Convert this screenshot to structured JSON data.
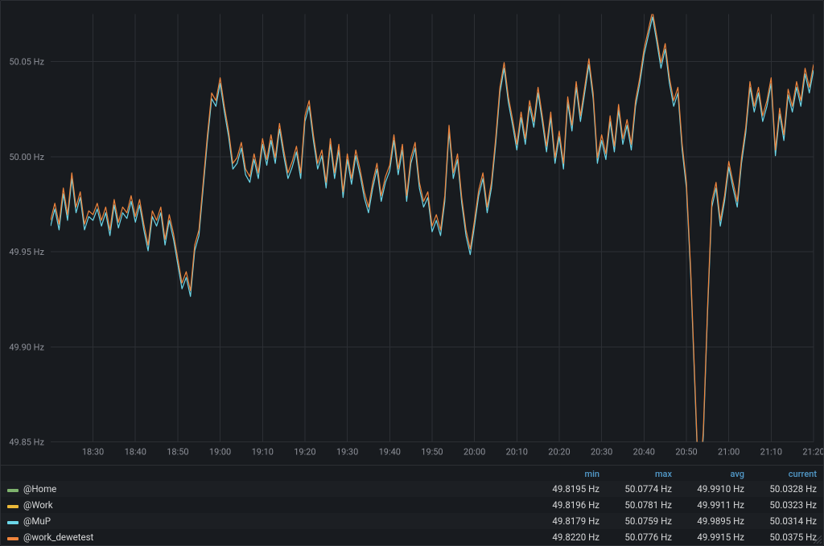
{
  "chart": {
    "type": "line",
    "background_color": "#181b1f",
    "grid_color": "#2c2f34",
    "axis_label_color": "#8e9199",
    "axis_fontsize": 11,
    "y": {
      "min": 49.85,
      "max": 50.075,
      "ticks": [
        49.85,
        49.9,
        49.95,
        50.0,
        50.05
      ],
      "tick_labels": [
        "49.85 Hz",
        "49.90 Hz",
        "49.95 Hz",
        "50.00 Hz",
        "50.05 Hz"
      ]
    },
    "x": {
      "min": 0,
      "max": 180,
      "ticks": [
        10,
        20,
        30,
        40,
        50,
        60,
        70,
        80,
        90,
        100,
        110,
        120,
        130,
        140,
        150,
        160,
        170,
        180
      ],
      "tick_labels": [
        "18:30",
        "18:40",
        "18:50",
        "19:00",
        "19:10",
        "19:20",
        "19:30",
        "19:40",
        "19:50",
        "20:00",
        "20:10",
        "20:20",
        "20:30",
        "20:40",
        "20:50",
        "21:00",
        "21:10",
        "21:20"
      ]
    },
    "line_width": 1.2,
    "series_plot": [
      {
        "name": "@MuP",
        "color": "#6bd6e8",
        "offset": -0.0015
      },
      {
        "name": "@work_dewetest",
        "color": "#ef843c",
        "offset": 0.0015
      }
    ],
    "base_line": [
      [
        0,
        49.965
      ],
      [
        1,
        49.974
      ],
      [
        2,
        49.963
      ],
      [
        3,
        49.982
      ],
      [
        4,
        49.968
      ],
      [
        5,
        49.99
      ],
      [
        6,
        49.972
      ],
      [
        7,
        49.98
      ],
      [
        8,
        49.963
      ],
      [
        9,
        49.97
      ],
      [
        10,
        49.968
      ],
      [
        11,
        49.974
      ],
      [
        12,
        49.965
      ],
      [
        13,
        49.972
      ],
      [
        14,
        49.96
      ],
      [
        15,
        49.976
      ],
      [
        16,
        49.964
      ],
      [
        17,
        49.972
      ],
      [
        18,
        49.969
      ],
      [
        19,
        49.978
      ],
      [
        20,
        49.967
      ],
      [
        21,
        49.976
      ],
      [
        22,
        49.963
      ],
      [
        23,
        49.952
      ],
      [
        24,
        49.97
      ],
      [
        25,
        49.965
      ],
      [
        26,
        49.972
      ],
      [
        27,
        49.955
      ],
      [
        28,
        49.968
      ],
      [
        29,
        49.958
      ],
      [
        30,
        49.945
      ],
      [
        31,
        49.932
      ],
      [
        32,
        49.938
      ],
      [
        33,
        49.928
      ],
      [
        34,
        49.952
      ],
      [
        35,
        49.96
      ],
      [
        36,
        49.985
      ],
      [
        37,
        50.01
      ],
      [
        38,
        50.032
      ],
      [
        39,
        50.028
      ],
      [
        40,
        50.04
      ],
      [
        41,
        50.025
      ],
      [
        42,
        50.012
      ],
      [
        43,
        49.995
      ],
      [
        44,
        49.998
      ],
      [
        45,
        50.006
      ],
      [
        46,
        49.992
      ],
      [
        47,
        49.988
      ],
      [
        48,
        50.0
      ],
      [
        49,
        49.99
      ],
      [
        50,
        50.008
      ],
      [
        51,
        49.997
      ],
      [
        52,
        50.01
      ],
      [
        53,
        49.998
      ],
      [
        54,
        50.016
      ],
      [
        55,
        50.002
      ],
      [
        56,
        49.99
      ],
      [
        57,
        49.996
      ],
      [
        58,
        50.004
      ],
      [
        59,
        49.99
      ],
      [
        60,
        50.02
      ],
      [
        61,
        50.028
      ],
      [
        62,
        50.01
      ],
      [
        63,
        49.995
      ],
      [
        64,
        50.002
      ],
      [
        65,
        49.985
      ],
      [
        66,
        50.008
      ],
      [
        67,
        49.99
      ],
      [
        68,
        50.005
      ],
      [
        69,
        49.98
      ],
      [
        70,
        50.0
      ],
      [
        71,
        49.987
      ],
      [
        72,
        50.002
      ],
      [
        73,
        49.992
      ],
      [
        74,
        49.98
      ],
      [
        75,
        49.972
      ],
      [
        76,
        49.985
      ],
      [
        77,
        49.995
      ],
      [
        78,
        49.978
      ],
      [
        79,
        49.988
      ],
      [
        80,
        49.994
      ],
      [
        81,
        50.01
      ],
      [
        82,
        49.992
      ],
      [
        83,
        50.005
      ],
      [
        84,
        49.978
      ],
      [
        85,
        49.998
      ],
      [
        86,
        50.006
      ],
      [
        87,
        49.985
      ],
      [
        88,
        49.975
      ],
      [
        89,
        49.98
      ],
      [
        90,
        49.962
      ],
      [
        91,
        49.968
      ],
      [
        92,
        49.96
      ],
      [
        93,
        49.978
      ],
      [
        94,
        50.015
      ],
      [
        95,
        49.99
      ],
      [
        96,
        50.0
      ],
      [
        97,
        49.977
      ],
      [
        98,
        49.96
      ],
      [
        99,
        49.95
      ],
      [
        100,
        49.965
      ],
      [
        101,
        49.981
      ],
      [
        102,
        49.99
      ],
      [
        103,
        49.972
      ],
      [
        104,
        49.985
      ],
      [
        105,
        50.008
      ],
      [
        106,
        50.035
      ],
      [
        107,
        50.048
      ],
      [
        108,
        50.03
      ],
      [
        109,
        50.018
      ],
      [
        110,
        50.005
      ],
      [
        111,
        50.022
      ],
      [
        112,
        50.008
      ],
      [
        113,
        50.028
      ],
      [
        114,
        50.017
      ],
      [
        115,
        50.035
      ],
      [
        116,
        50.02
      ],
      [
        117,
        50.004
      ],
      [
        118,
        50.022
      ],
      [
        119,
        49.998
      ],
      [
        120,
        50.012
      ],
      [
        121,
        49.995
      ],
      [
        122,
        50.03
      ],
      [
        123,
        50.015
      ],
      [
        124,
        50.038
      ],
      [
        125,
        50.02
      ],
      [
        126,
        50.035
      ],
      [
        127,
        50.05
      ],
      [
        128,
        50.032
      ],
      [
        129,
        49.998
      ],
      [
        130,
        50.01
      ],
      [
        131,
        50.0
      ],
      [
        132,
        50.02
      ],
      [
        133,
        50.004
      ],
      [
        134,
        50.026
      ],
      [
        135,
        50.008
      ],
      [
        136,
        50.018
      ],
      [
        137,
        50.005
      ],
      [
        138,
        50.028
      ],
      [
        139,
        50.04
      ],
      [
        140,
        50.055
      ],
      [
        141,
        50.065
      ],
      [
        142,
        50.075
      ],
      [
        143,
        50.062
      ],
      [
        144,
        50.048
      ],
      [
        145,
        50.058
      ],
      [
        146,
        50.04
      ],
      [
        147,
        50.028
      ],
      [
        148,
        50.035
      ],
      [
        149,
        50.005
      ],
      [
        150,
        49.985
      ],
      [
        151,
        49.94
      ],
      [
        152,
        49.88
      ],
      [
        153,
        49.82
      ],
      [
        154,
        49.855
      ],
      [
        155,
        49.92
      ],
      [
        156,
        49.975
      ],
      [
        157,
        49.985
      ],
      [
        158,
        49.965
      ],
      [
        159,
        49.978
      ],
      [
        160,
        49.996
      ],
      [
        161,
        49.985
      ],
      [
        162,
        49.975
      ],
      [
        163,
        49.998
      ],
      [
        164,
        50.014
      ],
      [
        165,
        50.038
      ],
      [
        166,
        50.025
      ],
      [
        167,
        50.035
      ],
      [
        168,
        50.02
      ],
      [
        169,
        50.028
      ],
      [
        170,
        50.04
      ],
      [
        171,
        50.002
      ],
      [
        172,
        50.024
      ],
      [
        173,
        50.01
      ],
      [
        174,
        50.034
      ],
      [
        175,
        50.025
      ],
      [
        176,
        50.038
      ],
      [
        177,
        50.028
      ],
      [
        178,
        50.045
      ],
      [
        179,
        50.035
      ],
      [
        180,
        50.047
      ]
    ]
  },
  "legend": {
    "header_color": "#529aca",
    "columns": [
      "min",
      "max",
      "avg",
      "current"
    ],
    "rows": [
      {
        "swatch": "#7eb26d",
        "name": "@Home",
        "min": "49.8195 Hz",
        "max": "50.0774 Hz",
        "avg": "49.9910 Hz",
        "current": "50.0328 Hz"
      },
      {
        "swatch": "#eab839",
        "name": "@Work",
        "min": "49.8196 Hz",
        "max": "50.0781 Hz",
        "avg": "49.9911 Hz",
        "current": "50.0323 Hz"
      },
      {
        "swatch": "#6bd6e8",
        "name": "@MuP",
        "min": "49.8179 Hz",
        "max": "50.0759 Hz",
        "avg": "49.9895 Hz",
        "current": "50.0314 Hz"
      },
      {
        "swatch": "#ef843c",
        "name": "@work_dewetest",
        "min": "49.8220 Hz",
        "max": "50.0776 Hz",
        "avg": "49.9915 Hz",
        "current": "50.0375 Hz"
      }
    ]
  }
}
